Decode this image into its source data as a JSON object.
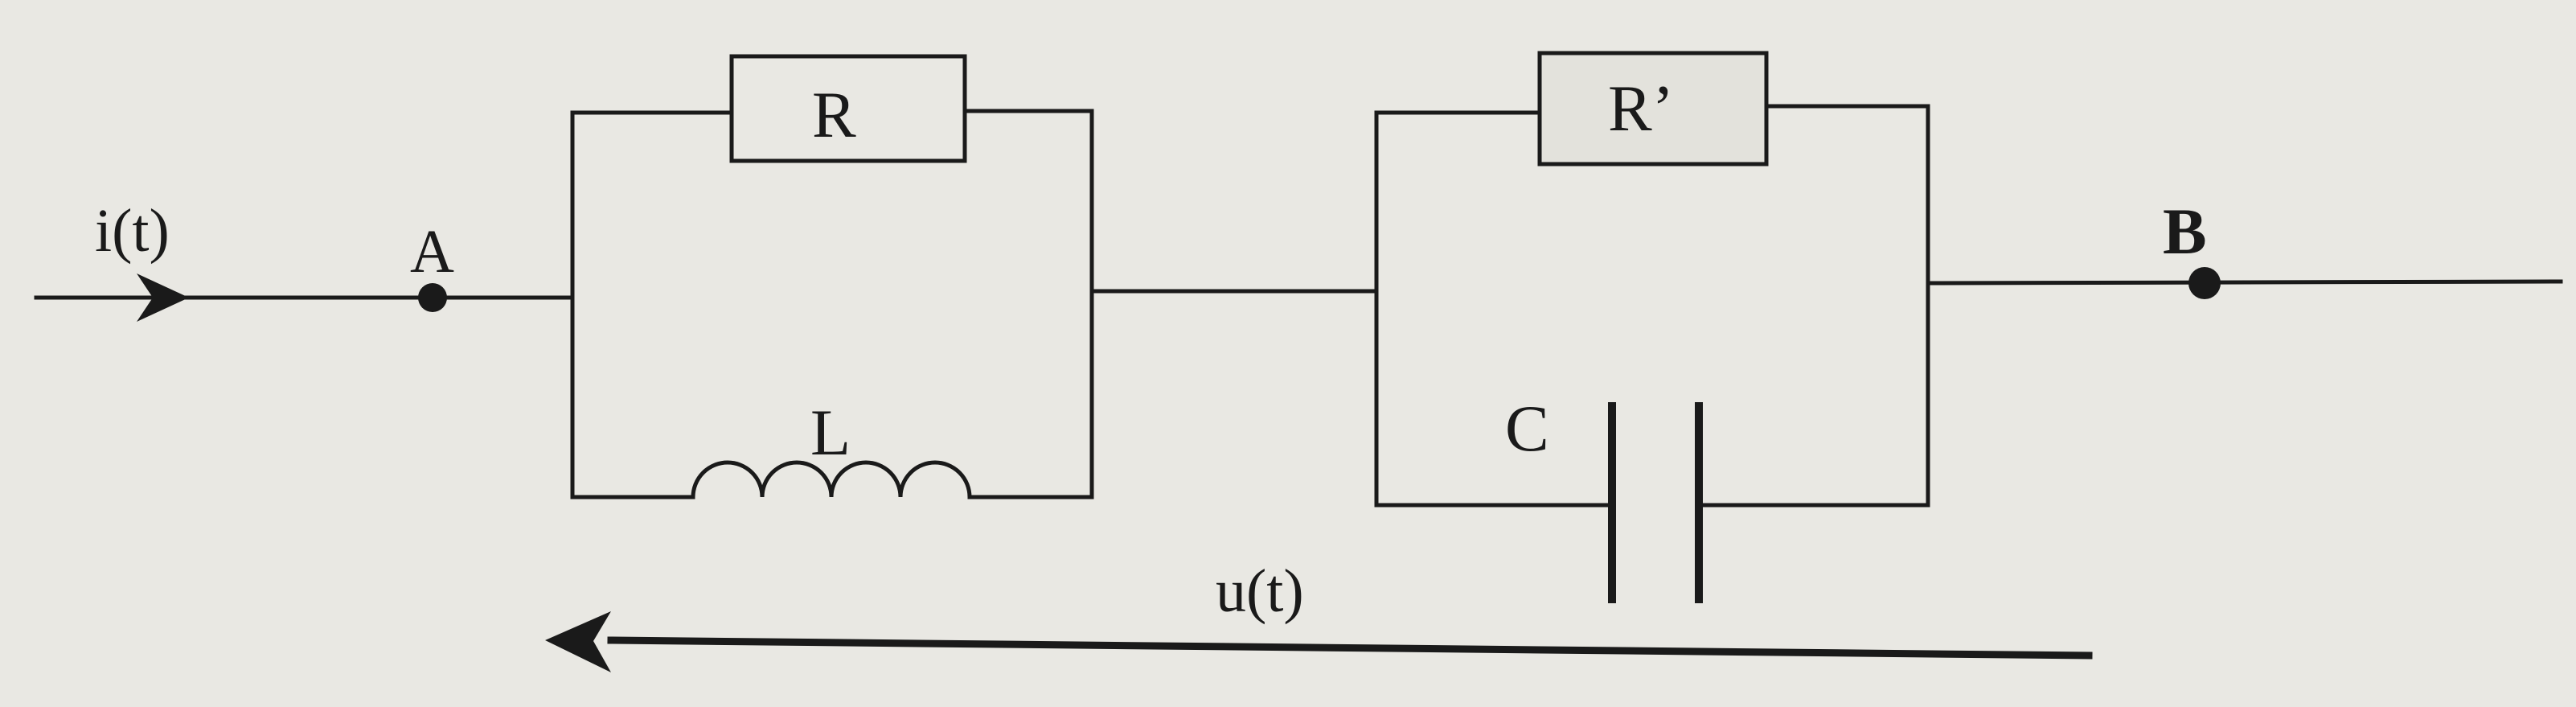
{
  "diagram": {
    "current_label": "i(t)",
    "voltage_label": "u(t)",
    "node_a": "A",
    "node_b": "B",
    "resistor_1": "R",
    "resistor_2": "R’",
    "inductor": "L",
    "capacitor": "C"
  },
  "colors": {
    "background": "#e9e8e3",
    "ink": "#1a1a1a"
  }
}
